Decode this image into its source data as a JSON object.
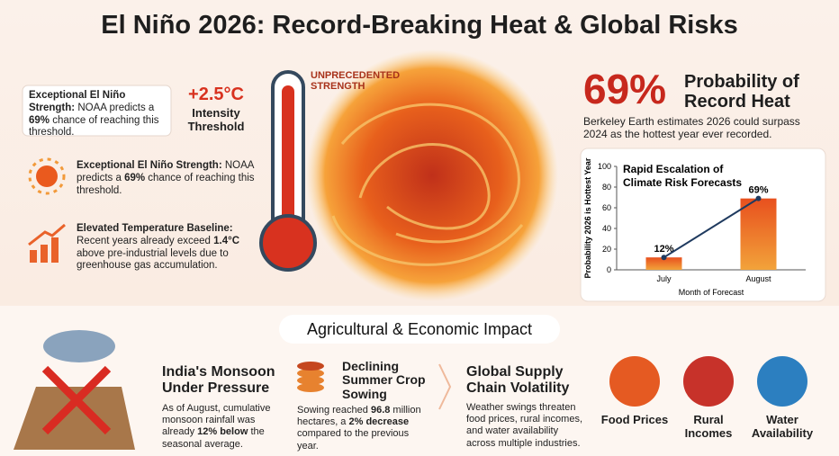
{
  "title": "El Niño 2026: Record-Breaking Heat & Global Risks",
  "left_items": [
    {
      "heading": "Exceptional El Niño Strength:",
      "text": [
        "NOAA predicts a ",
        "69%",
        " chance of reaching this threshold."
      ]
    },
    {
      "heading": "Exceptional El Niño Strength:",
      "text": [
        "NOAA predicts a ",
        "69%",
        " chance of reaching this threshold."
      ]
    },
    {
      "heading": "Elevated Temperature Baseline:",
      "text": [
        "Recent years already exceed ",
        "1.4°C",
        " above pre-industrial levels due to greenhouse gas accumulation."
      ]
    }
  ],
  "intensity": {
    "value": "+2.5°C",
    "label": "Intensity Threshold"
  },
  "thermo_label": "UNPRECEDENTED STRENGTH",
  "record": {
    "big": "69%",
    "heading": "Probability of Record Heat",
    "text": "Berkeley Earth estimates 2026 could surpass 2024 as the hottest year ever recorded."
  },
  "chart": {
    "type": "bar",
    "title": "Rapid Escalation of Climate Risk Forecasts",
    "x_label": "Month of Forecast",
    "y_label": "Probability 2026 is Hottest Year",
    "categories": [
      "July",
      "August"
    ],
    "values": [
      12,
      69
    ],
    "value_labels": [
      "12%",
      "69%"
    ],
    "ylim": [
      0,
      100
    ],
    "yticks": [
      0,
      20,
      40,
      60,
      80,
      100
    ],
    "line_color": "#1f3a5f"
  },
  "section_title": "Agricultural & Economic Impact",
  "impacts": [
    {
      "heading": "India's Monsoon Under Pressure",
      "text": [
        "As of August, cumulative monsoon rainfall was already ",
        "12% below",
        " the seasonal average."
      ]
    },
    {
      "heading": "Declining Summer Crop Sowing",
      "text": [
        "Sowing reached ",
        "96.8",
        " million hectares, a ",
        "2% decrease",
        " compared to the previous year."
      ]
    },
    {
      "heading": "Global Supply Chain Volatility",
      "text": [
        "Weather swings threaten food prices, rural incomes, and water availability across multiple industries."
      ]
    }
  ],
  "risks": [
    "Food Prices",
    "Rural Incomes",
    "Water Availability"
  ]
}
